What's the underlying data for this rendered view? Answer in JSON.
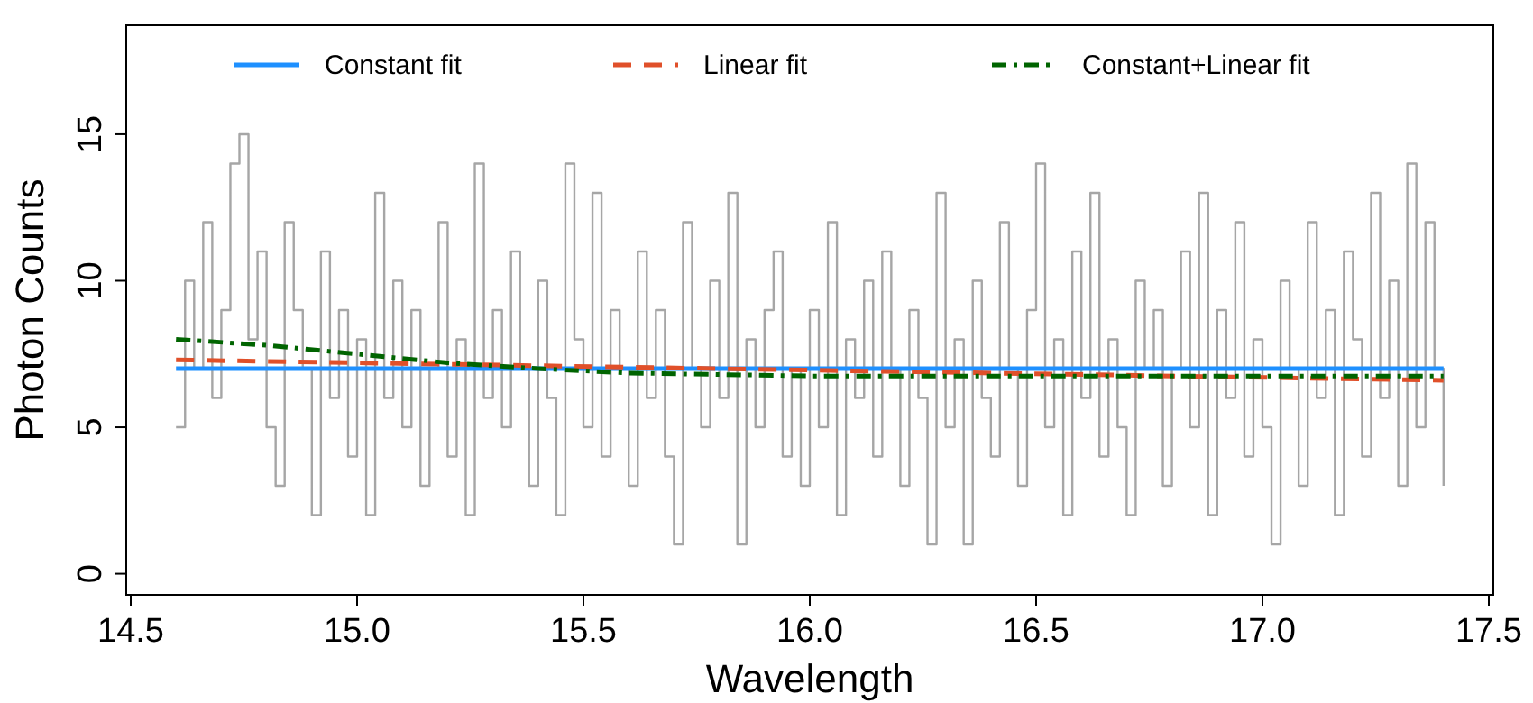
{
  "chart_data": {
    "type": "step",
    "xlabel": "Wavelength",
    "ylabel": "Photon Counts",
    "xlim": [
      14.49,
      17.51
    ],
    "ylim": [
      -0.72,
      18.72
    ],
    "xticks": [
      {
        "value": 14.5,
        "label": "14.5"
      },
      {
        "value": 15,
        "label": "15.0"
      },
      {
        "value": 15.5,
        "label": "15.5"
      },
      {
        "value": 16,
        "label": "16.0"
      },
      {
        "value": 16.5,
        "label": "16.5"
      },
      {
        "value": 17,
        "label": "17.0"
      },
      {
        "value": 17.5,
        "label": "17.5"
      }
    ],
    "yticks": [
      0,
      5,
      10,
      15
    ],
    "grid": false,
    "legend": "top",
    "series": [
      {
        "color": "#a6a6a6",
        "x": [
          14.6,
          14.62,
          14.64,
          14.66,
          14.68,
          14.7,
          14.72,
          14.74,
          14.76,
          14.78,
          14.8,
          14.82,
          14.84,
          14.86,
          14.88,
          14.9,
          14.92,
          14.94,
          14.96,
          14.98,
          15.0,
          15.02,
          15.04,
          15.06,
          15.08,
          15.1,
          15.12,
          15.14,
          15.16,
          15.18,
          15.2,
          15.22,
          15.24,
          15.26,
          15.28,
          15.3,
          15.32,
          15.34,
          15.36,
          15.38,
          15.4,
          15.42,
          15.44,
          15.46,
          15.48,
          15.5,
          15.52,
          15.54,
          15.56,
          15.58,
          15.6,
          15.62,
          15.64,
          15.66,
          15.68,
          15.7,
          15.72,
          15.74,
          15.76,
          15.78,
          15.8,
          15.82,
          15.84,
          15.86,
          15.88,
          15.9,
          15.92,
          15.94,
          15.96,
          15.98,
          16.0,
          16.02,
          16.04,
          16.06,
          16.08,
          16.1,
          16.12,
          16.14,
          16.16,
          16.18,
          16.2,
          16.22,
          16.24,
          16.26,
          16.28,
          16.3,
          16.32,
          16.34,
          16.36,
          16.38,
          16.4,
          16.42,
          16.44,
          16.46,
          16.48,
          16.5,
          16.52,
          16.54,
          16.56,
          16.58,
          16.6,
          16.62,
          16.64,
          16.66,
          16.68,
          16.7,
          16.72,
          16.74,
          16.76,
          16.78,
          16.8,
          16.82,
          16.84,
          16.86,
          16.88,
          16.9,
          16.92,
          16.94,
          16.96,
          16.98,
          17.0,
          17.02,
          17.04,
          17.06,
          17.08,
          17.1,
          17.12,
          17.14,
          17.16,
          17.18,
          17.2,
          17.22,
          17.24,
          17.26,
          17.28,
          17.3,
          17.32,
          17.34,
          17.36,
          17.38,
          17.4
        ],
        "values": [
          5,
          10,
          7,
          12,
          6,
          9,
          14,
          15,
          8,
          11,
          5,
          3,
          12,
          9,
          7,
          2,
          11,
          6,
          9,
          4,
          8,
          2,
          13,
          6,
          10,
          5,
          9,
          3,
          7,
          12,
          4,
          8,
          2,
          14,
          6,
          9,
          5,
          11,
          7,
          3,
          10,
          6,
          2,
          14,
          8,
          5,
          13,
          4,
          9,
          7,
          3,
          11,
          6,
          9,
          4,
          1,
          12,
          7,
          5,
          10,
          6,
          13,
          1,
          8,
          5,
          9,
          11,
          4,
          7,
          3,
          9,
          5,
          12,
          2,
          8,
          6,
          10,
          4,
          11,
          7,
          3,
          9,
          6,
          1,
          13,
          5,
          8,
          1,
          10,
          6,
          4,
          12,
          7,
          3,
          9,
          14,
          5,
          8,
          2,
          11,
          6,
          13,
          4,
          8,
          5,
          2,
          10,
          7,
          9,
          3,
          7,
          11,
          5,
          13,
          2,
          9,
          6,
          12,
          4,
          8,
          5,
          1,
          10,
          7,
          3,
          12,
          6,
          9,
          2,
          11,
          8,
          4,
          13,
          6,
          10,
          3,
          14,
          5,
          12,
          7,
          3
        ]
      },
      {
        "type": "line",
        "name": "Constant fit",
        "color": "#1e90ff",
        "line_style": "solid",
        "x": [
          14.6,
          17.4
        ],
        "values": [
          7,
          7
        ]
      },
      {
        "type": "line",
        "name": "Linear fit",
        "color": "#e0502a",
        "line_style": "dashed",
        "x": [
          14.6,
          17.4
        ],
        "values": [
          7.3,
          6.6
        ]
      },
      {
        "type": "line",
        "name": "Constant+Linear fit",
        "color": "#006400",
        "line_style": "dotted",
        "x": [
          14.6,
          14.8,
          15.0,
          15.2,
          15.4,
          15.6,
          15.8,
          16.0,
          16.5,
          17.0,
          17.4
        ],
        "values": [
          8.0,
          7.8,
          7.5,
          7.2,
          7.0,
          6.85,
          6.8,
          6.75,
          6.75,
          6.75,
          6.75
        ]
      }
    ]
  }
}
